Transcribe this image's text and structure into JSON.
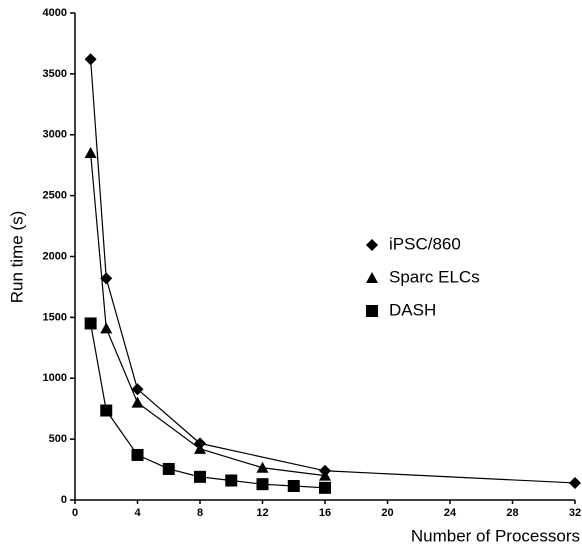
{
  "chart_data": {
    "type": "line",
    "xlabel": "Number of Processors",
    "ylabel": "Run time (s)",
    "xlim": [
      0,
      32
    ],
    "xticks": [
      0,
      4,
      8,
      12,
      16,
      20,
      24,
      28,
      32
    ],
    "ylim": [
      0,
      4000
    ],
    "yticks": [
      0,
      500,
      1000,
      1500,
      2000,
      2500,
      3000,
      3500,
      4000
    ],
    "series": [
      {
        "name": "iPSC/860",
        "color": "#000000",
        "marker": "diamond",
        "x": [
          1,
          2,
          4,
          8,
          16,
          32
        ],
        "values": [
          3620,
          1820,
          910,
          465,
          240,
          140
        ]
      },
      {
        "name": "Sparc ELCs",
        "color": "#000000",
        "marker": "triangle",
        "x": [
          1,
          2,
          4,
          8,
          12,
          16
        ],
        "values": [
          2850,
          1410,
          800,
          420,
          265,
          200
        ]
      },
      {
        "name": "DASH",
        "color": "#000000",
        "marker": "square",
        "x": [
          1,
          2,
          4,
          6,
          8,
          10,
          12,
          14,
          16
        ],
        "values": [
          1450,
          735,
          370,
          255,
          190,
          160,
          130,
          115,
          100
        ]
      }
    ]
  }
}
